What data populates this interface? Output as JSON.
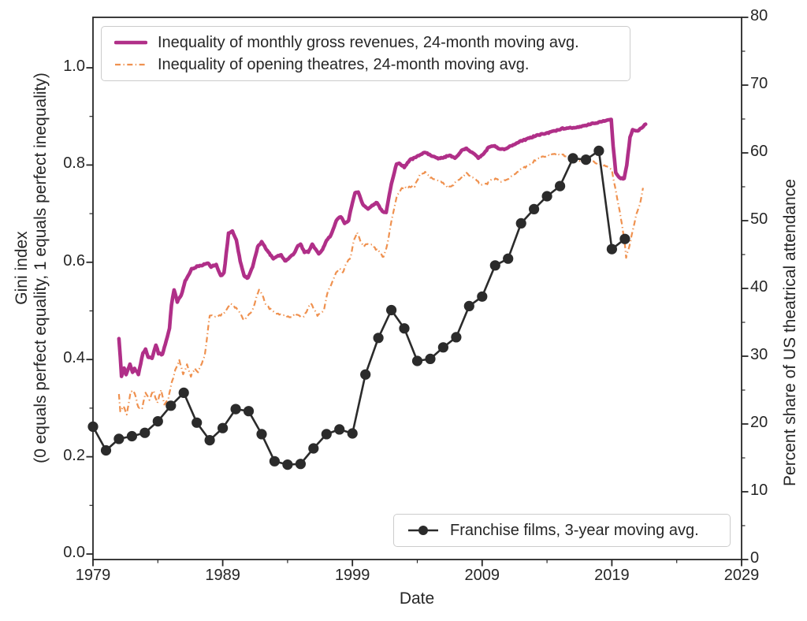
{
  "figure": {
    "background": "#ffffff",
    "text_color": "#262626",
    "frame_color": "#262626"
  },
  "legend_top": {
    "entries": [
      {
        "label": "Inequality of monthly gross revenues, 24-month moving avg.",
        "style": "solid"
      },
      {
        "label": "Inequality of opening theatres, 24-month moving avg.",
        "style": "dash-dot"
      }
    ]
  },
  "legend_bottom": {
    "entries": [
      {
        "label": "Franchise films, 3-year moving avg.",
        "style": "line-marker"
      }
    ]
  },
  "chart_data": {
    "type": "line",
    "x_axis": {
      "label": "Date",
      "range": [
        1979,
        2029
      ],
      "major_ticks": [
        1979,
        1989,
        1999,
        2009,
        2019,
        2029
      ],
      "major_tick_labels": [
        "1979",
        "1989",
        "1999",
        "2009",
        "2019",
        "2029"
      ],
      "minor_ticks": [
        1984,
        1994,
        2004,
        2014,
        2024
      ]
    },
    "left_axis": {
      "label_line1": "Gini index",
      "label_line2": "(0 equals perfect equality, 1 equals perfect inequality)",
      "range": [
        -0.011,
        1.104
      ],
      "major_ticks": [
        0.0,
        0.2,
        0.4,
        0.6,
        0.8,
        1.0
      ],
      "major_tick_labels": [
        "0.0",
        "0.2",
        "0.4",
        "0.6",
        "0.8",
        "1.0"
      ],
      "minor_ticks": [
        0.1,
        0.3,
        0.5,
        0.7,
        0.9
      ]
    },
    "right_axis": {
      "label": "Percent share of US theatrical attendance",
      "range": [
        0,
        80
      ],
      "major_ticks": [
        0,
        10,
        20,
        30,
        40,
        50,
        60,
        70,
        80
      ],
      "major_tick_labels": [
        "0",
        "10",
        "20",
        "30",
        "40",
        "50",
        "60",
        "70",
        "80"
      ],
      "minor_ticks": [
        5,
        15,
        25,
        35,
        45,
        55,
        65,
        75
      ]
    },
    "grid": false,
    "series": [
      {
        "name": "Inequality of opening theatres, 24-month moving avg.",
        "axis": "left",
        "color": "#ef914f",
        "line_style": "dash-dot",
        "line_width": 2.2,
        "points": [
          [
            1981.0,
            0.329
          ],
          [
            1981.1,
            0.292
          ],
          [
            1981.35,
            0.305
          ],
          [
            1981.6,
            0.288
          ],
          [
            1981.9,
            0.334
          ],
          [
            1982.2,
            0.332
          ],
          [
            1982.5,
            0.301
          ],
          [
            1982.8,
            0.301
          ],
          [
            1983.05,
            0.332
          ],
          [
            1983.35,
            0.316
          ],
          [
            1983.65,
            0.337
          ],
          [
            1983.95,
            0.31
          ],
          [
            1984.25,
            0.337
          ],
          [
            1984.5,
            0.308
          ],
          [
            1984.8,
            0.318
          ],
          [
            1985.05,
            0.35
          ],
          [
            1985.35,
            0.378
          ],
          [
            1985.65,
            0.399
          ],
          [
            1985.95,
            0.37
          ],
          [
            1986.25,
            0.389
          ],
          [
            1986.55,
            0.366
          ],
          [
            1986.85,
            0.381
          ],
          [
            1987.1,
            0.375
          ],
          [
            1987.4,
            0.394
          ],
          [
            1987.6,
            0.405
          ],
          [
            1988.0,
            0.491
          ],
          [
            1988.5,
            0.488
          ],
          [
            1989.1,
            0.494
          ],
          [
            1989.6,
            0.515
          ],
          [
            1990.2,
            0.502
          ],
          [
            1990.65,
            0.48
          ],
          [
            1991.3,
            0.502
          ],
          [
            1991.8,
            0.545
          ],
          [
            1992.05,
            0.532
          ],
          [
            1992.3,
            0.515
          ],
          [
            1992.6,
            0.505
          ],
          [
            1993.1,
            0.494
          ],
          [
            1993.7,
            0.491
          ],
          [
            1994.3,
            0.486
          ],
          [
            1994.6,
            0.494
          ],
          [
            1995.2,
            0.486
          ],
          [
            1995.8,
            0.516
          ],
          [
            1996.3,
            0.491
          ],
          [
            1996.8,
            0.502
          ],
          [
            1997.1,
            0.54
          ],
          [
            1997.45,
            0.559
          ],
          [
            1997.75,
            0.58
          ],
          [
            1998.0,
            0.588
          ],
          [
            1998.25,
            0.578
          ],
          [
            1998.55,
            0.599
          ],
          [
            1998.85,
            0.61
          ],
          [
            1999.15,
            0.648
          ],
          [
            1999.35,
            0.661
          ],
          [
            1999.6,
            0.645
          ],
          [
            1999.85,
            0.632
          ],
          [
            2000.1,
            0.637
          ],
          [
            2000.5,
            0.637
          ],
          [
            2000.8,
            0.627
          ],
          [
            2001.1,
            0.621
          ],
          [
            2001.4,
            0.61
          ],
          [
            2001.7,
            0.637
          ],
          [
            2002.0,
            0.683
          ],
          [
            2002.4,
            0.734
          ],
          [
            2002.8,
            0.753
          ],
          [
            2003.3,
            0.755
          ],
          [
            2003.8,
            0.757
          ],
          [
            2004.2,
            0.78
          ],
          [
            2004.6,
            0.785
          ],
          [
            2005.0,
            0.775
          ],
          [
            2005.5,
            0.769
          ],
          [
            2005.9,
            0.764
          ],
          [
            2006.3,
            0.756
          ],
          [
            2006.7,
            0.758
          ],
          [
            2007.1,
            0.767
          ],
          [
            2007.5,
            0.777
          ],
          [
            2007.8,
            0.783
          ],
          [
            2008.2,
            0.775
          ],
          [
            2008.6,
            0.767
          ],
          [
            2009.0,
            0.759
          ],
          [
            2009.4,
            0.762
          ],
          [
            2009.7,
            0.77
          ],
          [
            2010.1,
            0.772
          ],
          [
            2010.45,
            0.767
          ],
          [
            2010.8,
            0.77
          ],
          [
            2011.2,
            0.775
          ],
          [
            2011.6,
            0.783
          ],
          [
            2012.0,
            0.791
          ],
          [
            2012.6,
            0.8
          ],
          [
            2013.1,
            0.81
          ],
          [
            2013.6,
            0.816
          ],
          [
            2014.1,
            0.82
          ],
          [
            2014.6,
            0.822
          ],
          [
            2015.1,
            0.821
          ],
          [
            2015.6,
            0.818
          ],
          [
            2016.1,
            0.813
          ],
          [
            2016.6,
            0.809
          ],
          [
            2017.1,
            0.805
          ],
          [
            2017.6,
            0.806
          ],
          [
            2018.1,
            0.8
          ],
          [
            2018.6,
            0.798
          ],
          [
            2019.0,
            0.789
          ],
          [
            2019.4,
            0.734
          ],
          [
            2019.7,
            0.69
          ],
          [
            2019.95,
            0.648
          ],
          [
            2020.1,
            0.61
          ],
          [
            2020.35,
            0.634
          ],
          [
            2020.6,
            0.664
          ],
          [
            2020.9,
            0.7
          ],
          [
            2021.15,
            0.718
          ],
          [
            2021.4,
            0.753
          ]
        ]
      },
      {
        "name": "Inequality of monthly gross revenues, 24-month moving avg.",
        "axis": "left",
        "color": "#b02f88",
        "line_style": "solid",
        "line_width": 4.6,
        "points": [
          [
            1981.0,
            0.443
          ],
          [
            1981.1,
            0.405
          ],
          [
            1981.2,
            0.366
          ],
          [
            1981.4,
            0.383
          ],
          [
            1981.55,
            0.37
          ],
          [
            1981.85,
            0.391
          ],
          [
            1982.05,
            0.373
          ],
          [
            1982.2,
            0.381
          ],
          [
            1982.5,
            0.37
          ],
          [
            1982.85,
            0.413
          ],
          [
            1983.05,
            0.421
          ],
          [
            1983.25,
            0.405
          ],
          [
            1983.55,
            0.402
          ],
          [
            1983.85,
            0.43
          ],
          [
            1984.05,
            0.413
          ],
          [
            1984.35,
            0.41
          ],
          [
            1984.65,
            0.439
          ],
          [
            1984.9,
            0.464
          ],
          [
            1985.05,
            0.512
          ],
          [
            1985.25,
            0.543
          ],
          [
            1985.5,
            0.519
          ],
          [
            1985.8,
            0.532
          ],
          [
            1986.1,
            0.561
          ],
          [
            1986.6,
            0.586
          ],
          [
            1987.0,
            0.591
          ],
          [
            1987.4,
            0.594
          ],
          [
            1987.8,
            0.599
          ],
          [
            1988.1,
            0.591
          ],
          [
            1988.5,
            0.595
          ],
          [
            1988.85,
            0.572
          ],
          [
            1989.1,
            0.578
          ],
          [
            1989.45,
            0.659
          ],
          [
            1989.75,
            0.664
          ],
          [
            1990.05,
            0.645
          ],
          [
            1990.35,
            0.602
          ],
          [
            1990.65,
            0.572
          ],
          [
            1990.95,
            0.567
          ],
          [
            1991.3,
            0.591
          ],
          [
            1991.7,
            0.632
          ],
          [
            1992.0,
            0.642
          ],
          [
            1992.3,
            0.629
          ],
          [
            1992.6,
            0.618
          ],
          [
            1992.9,
            0.607
          ],
          [
            1993.2,
            0.612
          ],
          [
            1993.5,
            0.615
          ],
          [
            1993.8,
            0.602
          ],
          [
            1994.1,
            0.608
          ],
          [
            1994.5,
            0.618
          ],
          [
            1994.8,
            0.634
          ],
          [
            1995.0,
            0.637
          ],
          [
            1995.3,
            0.621
          ],
          [
            1995.6,
            0.621
          ],
          [
            1995.9,
            0.637
          ],
          [
            1996.4,
            0.618
          ],
          [
            1996.7,
            0.626
          ],
          [
            1997.0,
            0.645
          ],
          [
            1997.35,
            0.656
          ],
          [
            1997.75,
            0.686
          ],
          [
            1998.1,
            0.694
          ],
          [
            1998.4,
            0.68
          ],
          [
            1998.7,
            0.686
          ],
          [
            1999.0,
            0.723
          ],
          [
            1999.2,
            0.742
          ],
          [
            1999.45,
            0.745
          ],
          [
            1999.8,
            0.718
          ],
          [
            2000.2,
            0.71
          ],
          [
            2000.6,
            0.718
          ],
          [
            2000.9,
            0.723
          ],
          [
            2001.3,
            0.704
          ],
          [
            2001.6,
            0.702
          ],
          [
            2002.0,
            0.761
          ],
          [
            2002.4,
            0.802
          ],
          [
            2002.6,
            0.804
          ],
          [
            2003.0,
            0.796
          ],
          [
            2003.4,
            0.81
          ],
          [
            2003.8,
            0.815
          ],
          [
            2004.2,
            0.821
          ],
          [
            2004.6,
            0.826
          ],
          [
            2005.2,
            0.818
          ],
          [
            2005.6,
            0.813
          ],
          [
            2006.0,
            0.815
          ],
          [
            2006.5,
            0.821
          ],
          [
            2006.9,
            0.813
          ],
          [
            2007.5,
            0.832
          ],
          [
            2007.8,
            0.834
          ],
          [
            2008.3,
            0.824
          ],
          [
            2008.7,
            0.815
          ],
          [
            2009.1,
            0.822
          ],
          [
            2009.5,
            0.837
          ],
          [
            2009.9,
            0.84
          ],
          [
            2010.3,
            0.834
          ],
          [
            2010.7,
            0.833
          ],
          [
            2011.3,
            0.84
          ],
          [
            2011.9,
            0.848
          ],
          [
            2012.4,
            0.853
          ],
          [
            2013.2,
            0.861
          ],
          [
            2014.2,
            0.867
          ],
          [
            2015.2,
            0.875
          ],
          [
            2016.2,
            0.877
          ],
          [
            2017.2,
            0.883
          ],
          [
            2018.0,
            0.888
          ],
          [
            2018.6,
            0.892
          ],
          [
            2018.95,
            0.893
          ],
          [
            2019.1,
            0.84
          ],
          [
            2019.3,
            0.785
          ],
          [
            2019.6,
            0.773
          ],
          [
            2019.95,
            0.772
          ],
          [
            2020.15,
            0.8
          ],
          [
            2020.4,
            0.858
          ],
          [
            2020.6,
            0.872
          ],
          [
            2021.0,
            0.87
          ],
          [
            2021.3,
            0.877
          ],
          [
            2021.6,
            0.884
          ]
        ]
      },
      {
        "name": "Franchise films, 3-year moving avg.",
        "axis": "right",
        "color": "#2b2b2b",
        "line_style": "solid-markers",
        "line_width": 2.6,
        "marker": "circle",
        "points": [
          [
            1979,
            19.6
          ],
          [
            1980,
            16.1
          ],
          [
            1981,
            17.8
          ],
          [
            1982,
            18.2
          ],
          [
            1983,
            18.7
          ],
          [
            1984,
            20.4
          ],
          [
            1985,
            22.7
          ],
          [
            1986,
            24.6
          ],
          [
            1987,
            20.2
          ],
          [
            1988,
            17.6
          ],
          [
            1989,
            19.4
          ],
          [
            1990,
            22.2
          ],
          [
            1991,
            21.9
          ],
          [
            1992,
            18.5
          ],
          [
            1993,
            14.5
          ],
          [
            1994,
            14.0
          ],
          [
            1995,
            14.1
          ],
          [
            1996,
            16.4
          ],
          [
            1997,
            18.5
          ],
          [
            1998,
            19.2
          ],
          [
            1999,
            18.6
          ],
          [
            2000,
            27.3
          ],
          [
            2001,
            32.7
          ],
          [
            2002,
            36.8
          ],
          [
            2003,
            34.1
          ],
          [
            2004,
            29.3
          ],
          [
            2005,
            29.6
          ],
          [
            2006,
            31.3
          ],
          [
            2007,
            32.8
          ],
          [
            2008,
            37.4
          ],
          [
            2009,
            38.8
          ],
          [
            2010,
            43.4
          ],
          [
            2011,
            44.4
          ],
          [
            2012,
            49.6
          ],
          [
            2013,
            51.7
          ],
          [
            2014,
            53.6
          ],
          [
            2015,
            55.1
          ],
          [
            2016,
            59.2
          ],
          [
            2017,
            59.0
          ],
          [
            2018,
            60.3
          ],
          [
            2019,
            45.8
          ],
          [
            2020,
            47.3
          ]
        ]
      }
    ]
  }
}
